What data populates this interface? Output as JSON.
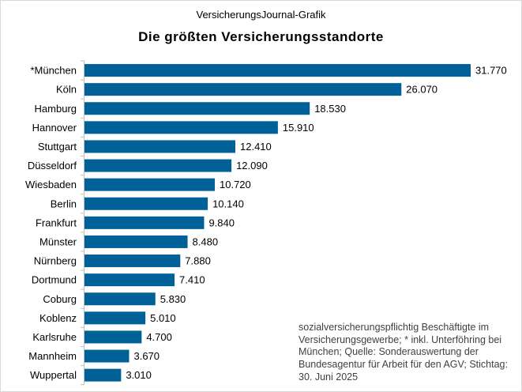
{
  "header": {
    "kicker": "VersicherungsJournal-Grafik",
    "title": "Die größten Versicherungsstandorte"
  },
  "note": "sozialversicherungspflichtig  Beschäftigte im Versicherungsgewerbe;  * inkl. Unterföhring bei München; Quelle: Sonderauswertung  der Bundesagentur  für Arbeit für den AGV; Stichtag: 30. Juni 2025",
  "colors": {
    "bar": "#006199",
    "axis": "#bfbfbf"
  },
  "chart_data": {
    "type": "bar",
    "orientation": "horizontal",
    "title": "Die größten Versicherungsstandorte",
    "categories": [
      "*München",
      "Köln",
      "Hamburg",
      "Hannover",
      "Stuttgart",
      "Düsseldorf",
      "Wiesbaden",
      "Berlin",
      "Frankfurt",
      "Münster",
      "Nürnberg",
      "Dortmund",
      "Coburg",
      "Koblenz",
      "Karlsruhe",
      "Mannheim",
      "Wuppertal"
    ],
    "values": [
      31770,
      26070,
      18530,
      15910,
      12410,
      12090,
      10720,
      10140,
      9840,
      8480,
      7880,
      7410,
      5830,
      5010,
      4700,
      3670,
      3010
    ],
    "data_labels": [
      "31.770",
      "26.070",
      "18.530",
      "15.910",
      "12.410",
      "12.090",
      "10.720",
      "10.140",
      "9.840",
      "8.480",
      "7.880",
      "7.410",
      "5.830",
      "5.010",
      "4.700",
      "3.670",
      "3.010"
    ],
    "xlim": [
      0,
      31770
    ],
    "grid": false,
    "legend": "none"
  }
}
